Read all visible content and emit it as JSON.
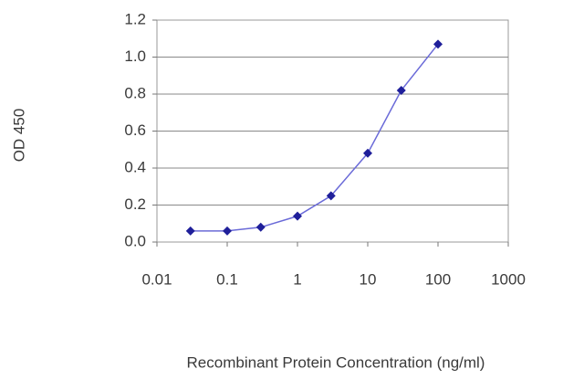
{
  "chart_data": {
    "type": "line",
    "x_label": "Recombinant Protein Concentration (ng/ml)",
    "y_label": "OD 450",
    "xscale": "log",
    "grid": true,
    "series": [
      {
        "color": "#1f1f9a",
        "x": [
          0.03,
          0.1,
          0.3,
          1,
          3,
          10,
          30,
          100
        ],
        "values": [
          0.06,
          0.06,
          0.08,
          0.14,
          0.25,
          0.48,
          0.82,
          1.07
        ]
      }
    ],
    "xlim": [
      0.01,
      1000
    ],
    "xticks": [
      0.01,
      0.1,
      1,
      10,
      100,
      1000
    ],
    "ylim": [
      0,
      1.2
    ],
    "yticks": [
      {
        "value": 0,
        "label": "0.0"
      },
      0.2,
      0.4,
      0.6,
      0.8,
      {
        "value": 1,
        "label": "1.0"
      },
      1.2
    ]
  }
}
